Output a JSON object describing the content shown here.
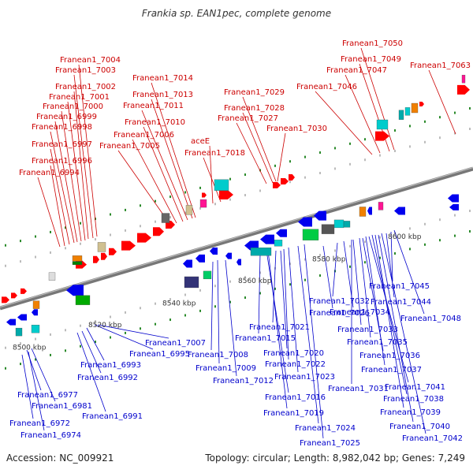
{
  "title": "Frankia sp. EAN1pec, complete genome",
  "footer": {
    "accession": "Accession: NC_009921",
    "summary": "Topology: circular; Length: 8,982,042 bp; Genes: 7,249"
  },
  "colors": {
    "forward_label": "#cc0000",
    "reverse_label": "#0000cc",
    "forward_gene": "#ff0000",
    "reverse_gene": "#0000ee",
    "backbone": "#888888",
    "dot": "#2a8a2a"
  },
  "scale": {
    "ticks": [
      "8500 kbp",
      "8520 kbp",
      "8540 kbp",
      "8560 kbp",
      "8580 kbp",
      "8600 kbp"
    ]
  },
  "forward_labels": [
    "Franean1_7004",
    "Franean1_7003",
    "Franean1_7002",
    "Franean1_7001",
    "Franean1_7000",
    "Franean1_6999",
    "Franean1_6998",
    "Franean1_6997",
    "Franean1_6996",
    "Franean1_6994",
    "Franean1_7014",
    "Franean1_7013",
    "Franean1_7011",
    "Franean1_7010",
    "Franean1_7006",
    "Franean1_7005",
    "aceE",
    "Franean1_7018",
    "Franean1_7029",
    "Franean1_7028",
    "Franean1_7027",
    "Franean1_7030",
    "Franean1_7046",
    "Franean1_7047",
    "Franean1_7049",
    "Franean1_7050",
    "Franean1_7063"
  ],
  "reverse_labels": [
    "Franean1_7045",
    "Franean1_7044",
    "Franean1_7048",
    "Franean1_7032",
    "Franean1_7034",
    "Franean1_7026",
    "Franean1_7021",
    "Franean1_7033",
    "Franean1_7035",
    "Franean1_7015",
    "Franean1_7007",
    "Franean1_7020",
    "Franean1_7036",
    "Franean1_6995",
    "Franean1_7008",
    "Franean1_7022",
    "Franean1_7037",
    "Franean1_6993",
    "Franean1_7009",
    "Franean1_7023",
    "Franean1_6992",
    "Franean1_7012",
    "Franean1_7031",
    "Franean1_7041",
    "Franean1_7016",
    "Franean1_7038",
    "Franean1_6977",
    "Franean1_6981",
    "Franean1_7019",
    "Franean1_7039",
    "Franean1_6991",
    "Franean1_6972",
    "Franean1_7024",
    "Franean1_7040",
    "Franean1_6974",
    "Franean1_7025",
    "Franean1_7042"
  ]
}
